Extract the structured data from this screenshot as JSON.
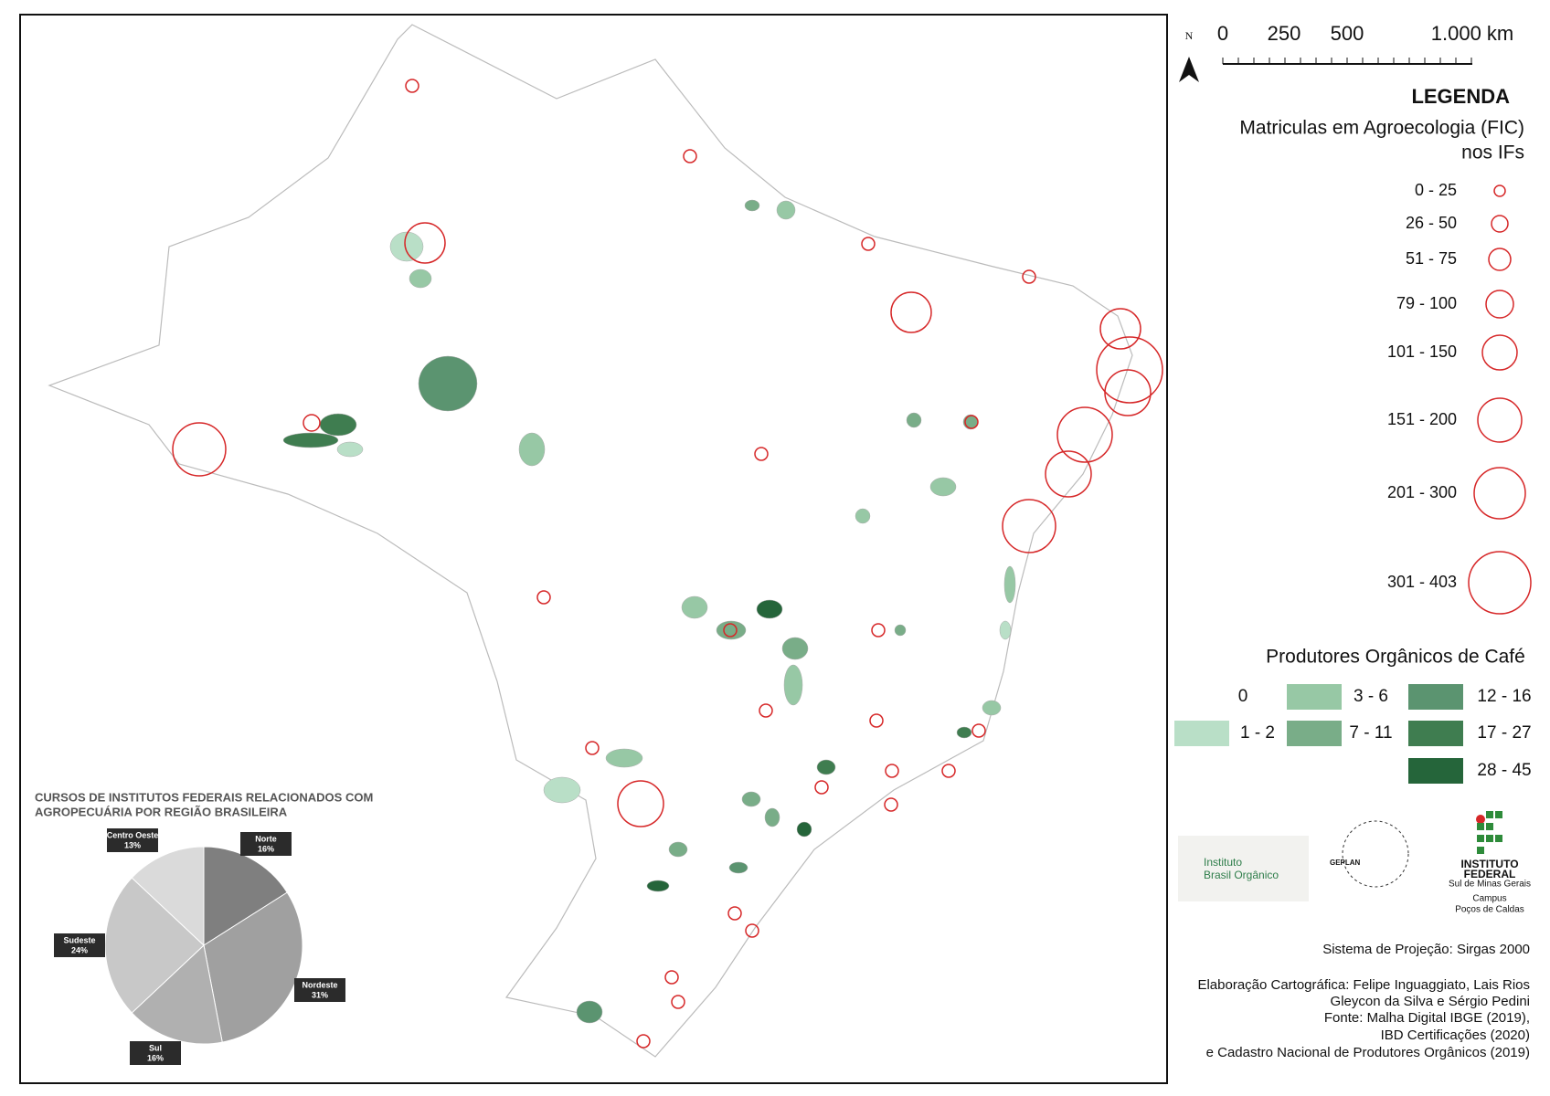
{
  "map": {
    "north_label": "N",
    "scale_labels": [
      "0",
      "250",
      "500",
      "1.000 km"
    ]
  },
  "legend": {
    "title": "LEGENDA",
    "enrollment": {
      "title_lines": [
        "Matriculas em Agroecologia (FIC)",
        "nos IFs"
      ],
      "classes": [
        "0 - 25",
        "26 - 50",
        "51 - 75",
        "79 - 100",
        "101 - 150",
        "151 - 200",
        "201 - 300",
        "301 - 403"
      ]
    },
    "coffee": {
      "title": "Produtores Orgânicos de Café",
      "classes": [
        {
          "label": "0",
          "color": "#ffffff"
        },
        {
          "label": "1 - 2",
          "color": "#b9dfc7"
        },
        {
          "label": "3 - 6",
          "color": "#97c8a5"
        },
        {
          "label": "7 - 11",
          "color": "#79ad88"
        },
        {
          "label": "12 - 16",
          "color": "#5b9470"
        },
        {
          "label": "17 - 27",
          "color": "#3f7d50"
        },
        {
          "label": "28 - 45",
          "color": "#25653a"
        }
      ]
    }
  },
  "logos": {
    "ibo": [
      "Instituto",
      "Brasil Orgânico"
    ],
    "geplan": "GEPLAN",
    "if": [
      "INSTITUTO",
      "FEDERAL",
      "Sul de Minas Gerais",
      "Campus",
      "Poços de Caldas"
    ]
  },
  "credits": [
    "Sistema de Projeção: Sirgas 2000",
    "Elaboração Cartográfica: Felipe Inguaggiato, Lais Rios",
    "Gleycon da Silva e Sérgio Pedini",
    "Fonte: Malha Digital IBGE (2019),",
    "IBD Certificações (2020)",
    "e Cadastro Nacional de Produtores Orgânicos (2019)"
  ],
  "chart_data": {
    "type": "pie",
    "title_lines": [
      "CURSOS DE INSTITUTOS FEDERAIS RELACIONADOS  COM",
      "AGROPECUÁRIA POR REGIÃO BRASILEIRA"
    ],
    "categories": [
      "Norte",
      "Nordeste",
      "Sul",
      "Sudeste",
      "Centro Oeste"
    ],
    "values": [
      16,
      31,
      16,
      24,
      13
    ],
    "value_labels": [
      "16%",
      "31%",
      "16%",
      "24%",
      "13%"
    ],
    "colors": [
      "#7f7f7f",
      "#a0a0a0",
      "#b0b0b0",
      "#c8c8c8",
      "#dadada"
    ]
  }
}
